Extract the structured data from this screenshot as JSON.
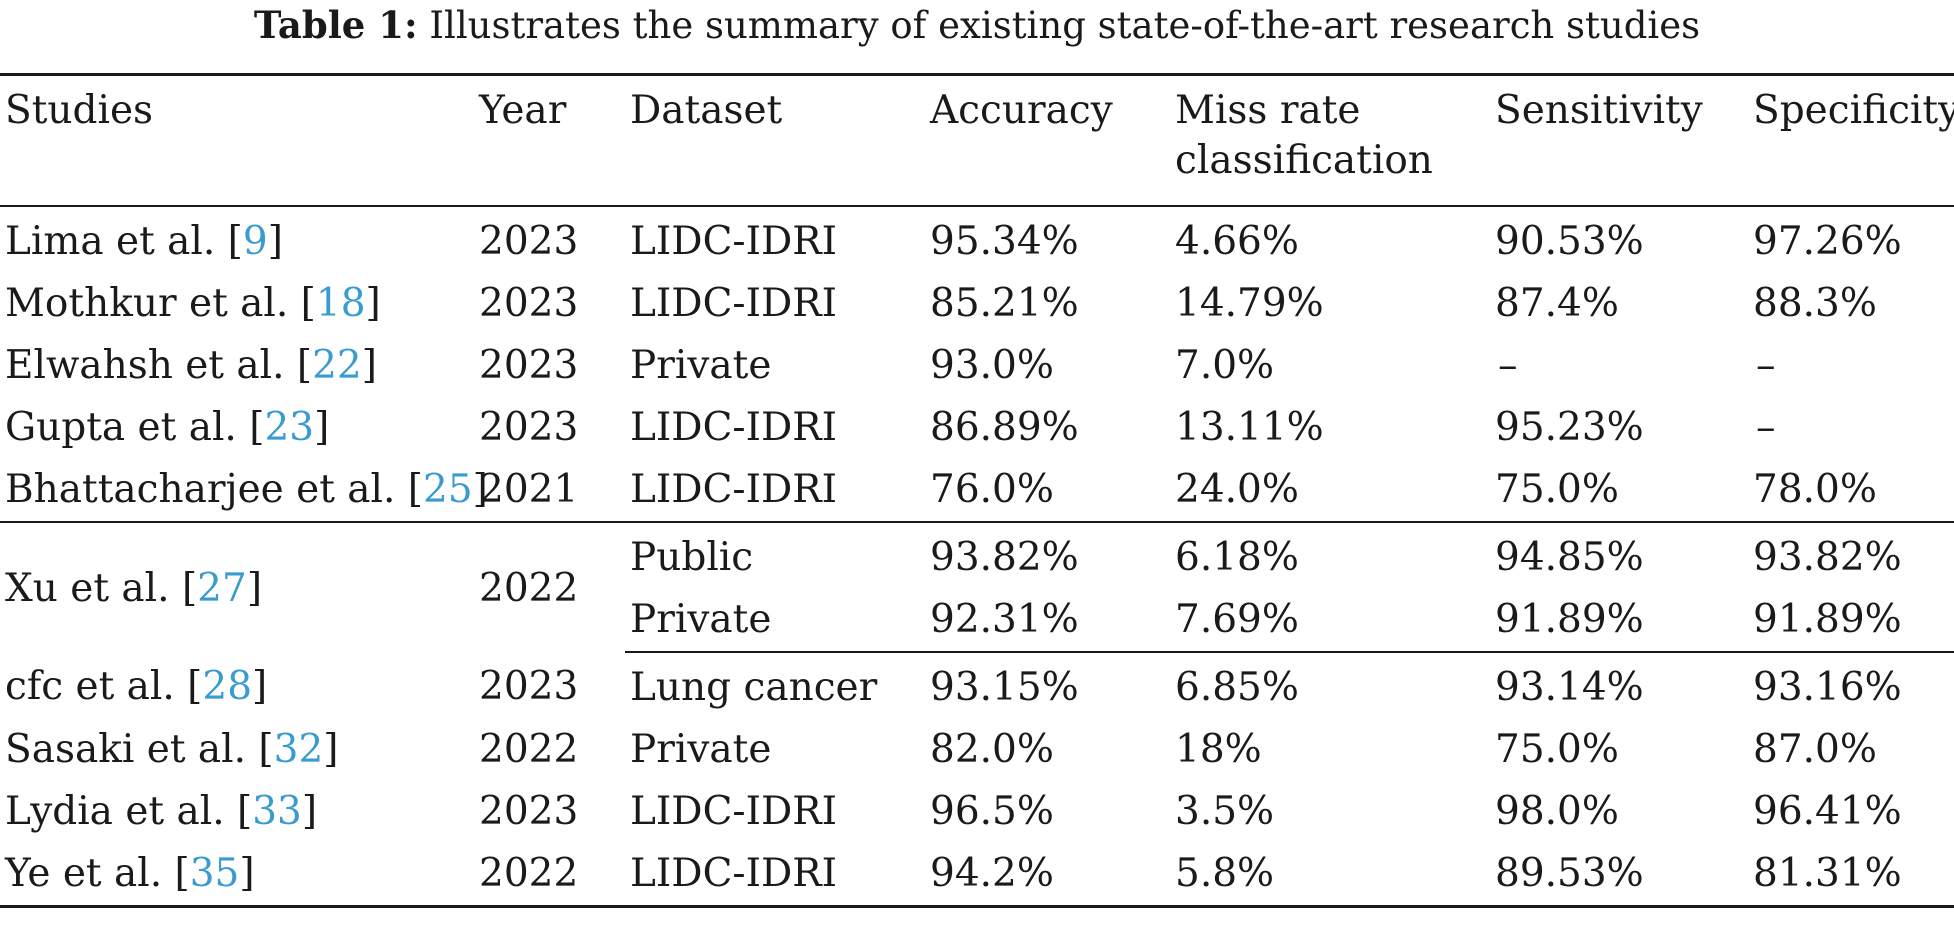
{
  "caption": {
    "lead": "Table 1:",
    "text": "Illustrates the summary of existing state-of-the-art research studies"
  },
  "table": {
    "headers": {
      "studies": "Studies",
      "year": "Year",
      "dataset": "Dataset",
      "accuracy": "Accuracy",
      "miss_rate_1": "Miss rate",
      "miss_rate_2": "classification",
      "sensitivity": "Sensitivity",
      "specificity": "Specificity"
    },
    "rows": [
      {
        "study": "Lima et al. [",
        "ref": "9",
        "close": "]",
        "year": "2023",
        "dataset": "LIDC-IDRI",
        "accuracy": "95.34%",
        "miss_rate": "4.66%",
        "sensitivity": "90.53%",
        "specificity": "97.26%"
      },
      {
        "study": "Mothkur et al. [",
        "ref": "18",
        "close": "]",
        "year": "2023",
        "dataset": "LIDC-IDRI",
        "accuracy": "85.21%",
        "miss_rate": "14.79%",
        "sensitivity": "87.4%",
        "specificity": "88.3%"
      },
      {
        "study": "Elwahsh et al. [",
        "ref": "22",
        "close": "]",
        "year": "2023",
        "dataset": "Private",
        "accuracy": "93.0%",
        "miss_rate": "7.0%",
        "sensitivity": "–",
        "specificity": "–"
      },
      {
        "study": "Gupta et al. [",
        "ref": "23",
        "close": "]",
        "year": "2023",
        "dataset": "LIDC-IDRI",
        "accuracy": "86.89%",
        "miss_rate": "13.11%",
        "sensitivity": "95.23%",
        "specificity": "–"
      },
      {
        "study": "Bhattacharjee et al. [",
        "ref": "25",
        "close": "]",
        "year": "2021",
        "dataset": "LIDC-IDRI",
        "accuracy": "76.0%",
        "miss_rate": "24.0%",
        "sensitivity": "75.0%",
        "specificity": "78.0%"
      }
    ],
    "xu": {
      "study": "Xu et al. [",
      "ref": "27",
      "close": "]",
      "year": "2022",
      "subrows": [
        {
          "dataset": "Public",
          "accuracy": "93.82%",
          "miss_rate": "6.18%",
          "sensitivity": "94.85%",
          "specificity": "93.82%"
        },
        {
          "dataset": "Private",
          "accuracy": "92.31%",
          "miss_rate": "7.69%",
          "sensitivity": "91.89%",
          "specificity": "91.89%"
        }
      ]
    },
    "rows_after": [
      {
        "study": "cfc et al. [",
        "ref": "28",
        "close": "]",
        "year": "2023",
        "dataset": "Lung cancer",
        "accuracy": "93.15%",
        "miss_rate": "6.85%",
        "sensitivity": "93.14%",
        "specificity": "93.16%"
      },
      {
        "study": "Sasaki et al. [",
        "ref": "32",
        "close": "]",
        "year": "2022",
        "dataset": "Private",
        "accuracy": "82.0%",
        "miss_rate": "18%",
        "sensitivity": "75.0%",
        "specificity": "87.0%"
      },
      {
        "study": "Lydia et al. [",
        "ref": "33",
        "close": "]",
        "year": "2023",
        "dataset": "LIDC-IDRI",
        "accuracy": "96.5%",
        "miss_rate": "3.5%",
        "sensitivity": "98.0%",
        "specificity": "96.41%"
      },
      {
        "study": "Ye et al. [",
        "ref": "35",
        "close": "]",
        "year": "2022",
        "dataset": "LIDC-IDRI",
        "accuracy": "94.2%",
        "miss_rate": "5.8%",
        "sensitivity": "89.53%",
        "specificity": "81.31%"
      }
    ]
  }
}
